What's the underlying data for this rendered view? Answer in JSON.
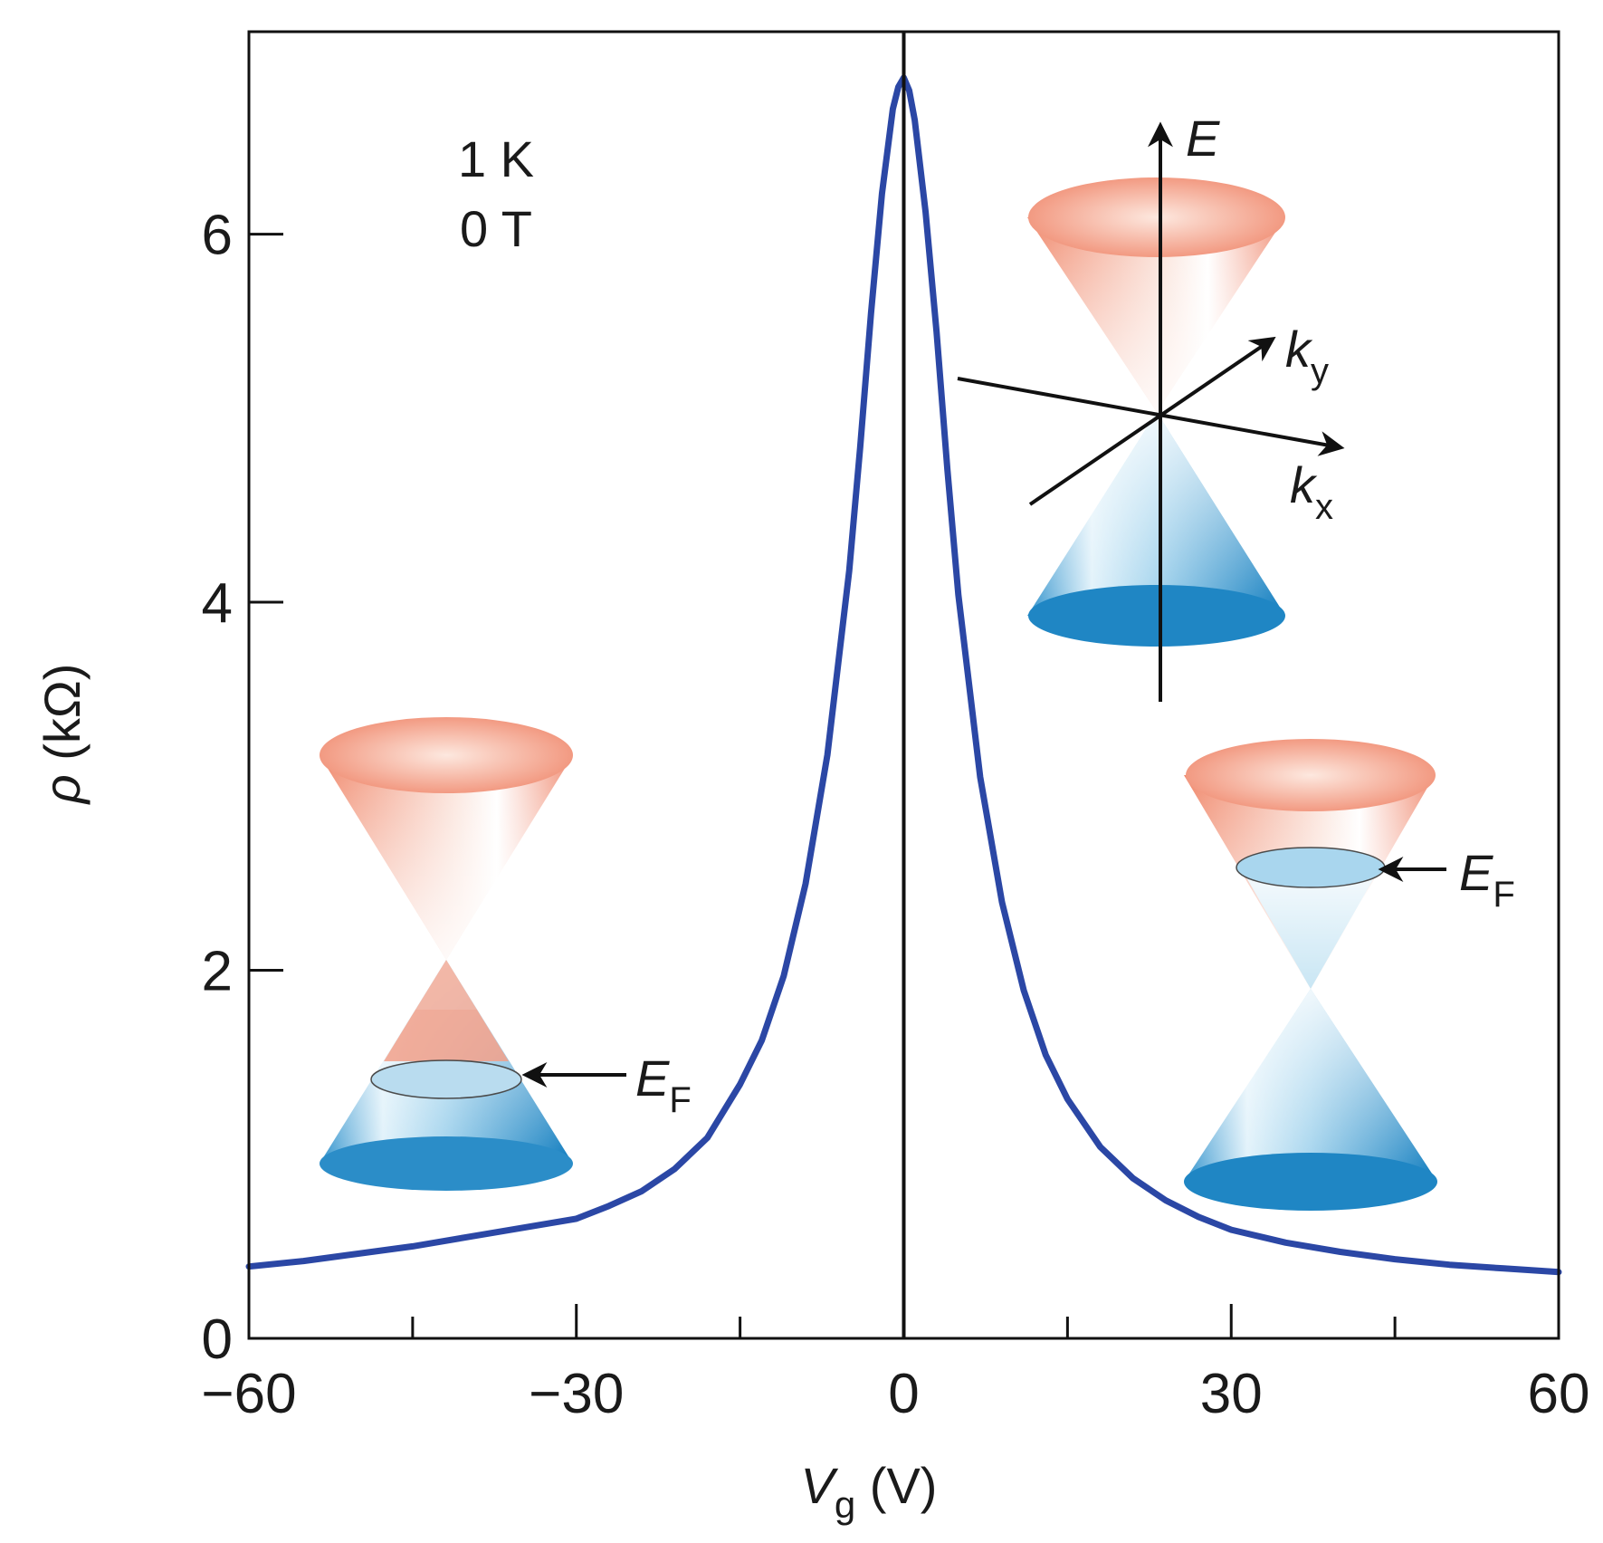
{
  "chart_data": {
    "type": "line",
    "title": "",
    "conditions": [
      "1 K",
      "0 T"
    ],
    "xlabel": {
      "symbol": "V",
      "subscript": "g",
      "unit": " (V)"
    },
    "ylabel": {
      "symbol": "ρ",
      "unit": " (kΩ)"
    },
    "xlim": [
      -60,
      60
    ],
    "ylim": [
      0,
      7.1
    ],
    "xticks": [
      -60,
      -30,
      0,
      30,
      60
    ],
    "xtick_labels": [
      "−60",
      "−30",
      "0",
      "30",
      "60"
    ],
    "x_minor_ticks": [
      -45,
      -15,
      15,
      45
    ],
    "yticks": [
      0,
      2,
      4,
      6
    ],
    "ytick_labels": [
      "0",
      "2",
      "4",
      "6"
    ],
    "zero_line": {
      "x": 0,
      "color": "#111111"
    },
    "series": [
      {
        "name": "rho",
        "color": "#2b47a5",
        "x": [
          -60,
          -55,
          -50,
          -45,
          -40,
          -35,
          -30,
          -27,
          -24,
          -21,
          -18,
          -15,
          -13,
          -11,
          -9,
          -7,
          -5,
          -4,
          -3,
          -2,
          -1,
          -0.5,
          0,
          0.5,
          1,
          2,
          3,
          4,
          5,
          7,
          9,
          11,
          13,
          15,
          18,
          21,
          24,
          27,
          30,
          35,
          40,
          45,
          50,
          55,
          60
        ],
        "y": [
          0.39,
          0.42,
          0.46,
          0.5,
          0.55,
          0.6,
          0.65,
          0.72,
          0.8,
          0.92,
          1.09,
          1.38,
          1.62,
          1.97,
          2.47,
          3.17,
          4.17,
          4.84,
          5.57,
          6.22,
          6.68,
          6.8,
          6.85,
          6.78,
          6.62,
          6.12,
          5.47,
          4.72,
          4.04,
          3.05,
          2.37,
          1.89,
          1.54,
          1.3,
          1.04,
          0.87,
          0.75,
          0.66,
          0.59,
          0.52,
          0.47,
          0.43,
          0.4,
          0.38,
          0.36
        ]
      }
    ],
    "insets": [
      {
        "name": "left-cone",
        "fermi_level": "below-dirac-point",
        "label": {
          "symbol": "E",
          "subscript": "F"
        }
      },
      {
        "name": "center-cone",
        "axes": {
          "E": "E",
          "kx": {
            "symbol": "k",
            "subscript": "x"
          },
          "ky": {
            "symbol": "k",
            "subscript": "y"
          }
        }
      },
      {
        "name": "right-cone",
        "fermi_level": "above-dirac-point",
        "label": {
          "symbol": "E",
          "subscript": "F"
        }
      }
    ],
    "colors": {
      "upper_cone": "#f0876a",
      "lower_cone": "#1d8ac6",
      "axis": "#111111"
    }
  }
}
